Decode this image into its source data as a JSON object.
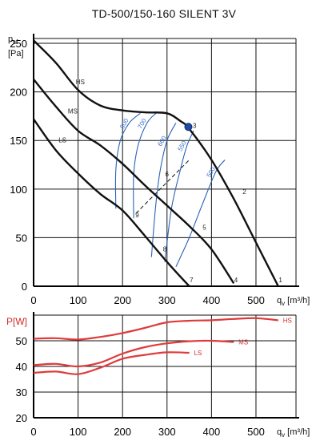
{
  "title": "TD-500/150-160 SILENT 3V",
  "colors": {
    "curve": "#111111",
    "iso": "#2a63b5",
    "power": "#e03a3a",
    "grid": "#111111",
    "op_point": "#1f4aa0"
  },
  "chart_data": [
    {
      "type": "line",
      "title": "TD-500/150-160 SILENT 3V",
      "ylabel": "p_sf [Pa]",
      "xlabel": "q_v [m³/h]",
      "xlim": [
        0,
        590
      ],
      "ylim": [
        0,
        255
      ],
      "x_ticks": [
        0,
        100,
        200,
        300,
        400,
        500
      ],
      "y_ticks": [
        0,
        50,
        100,
        150,
        200,
        250
      ],
      "grid": true,
      "series": [
        {
          "name": "HS",
          "points": [
            [
              0,
              253
            ],
            [
              50,
              230
            ],
            [
              100,
              202
            ],
            [
              150,
              186
            ],
            [
              200,
              181
            ],
            [
              250,
              179
            ],
            [
              300,
              178
            ],
            [
              330,
              170
            ],
            [
              350,
              162
            ],
            [
              400,
              130
            ],
            [
              450,
              90
            ],
            [
              500,
              45
            ],
            [
              550,
              0
            ]
          ]
        },
        {
          "name": "MS",
          "points": [
            [
              0,
              213
            ],
            [
              50,
              185
            ],
            [
              100,
              160
            ],
            [
              150,
              145
            ],
            [
              200,
              126
            ],
            [
              250,
              104
            ],
            [
              300,
              83
            ],
            [
              350,
              62
            ],
            [
              400,
              38
            ],
            [
              450,
              3
            ]
          ]
        },
        {
          "name": "LS",
          "points": [
            [
              0,
              172
            ],
            [
              50,
              140
            ],
            [
              100,
              116
            ],
            [
              150,
              95
            ],
            [
              200,
              78
            ],
            [
              250,
              52
            ],
            [
              300,
              25
            ],
            [
              350,
              0
            ]
          ]
        }
      ],
      "iso_lines": [
        {
          "label": "800",
          "points": [
            [
              185,
              80
            ],
            [
              185,
              120
            ],
            [
              195,
              150
            ],
            [
              215,
              168
            ],
            [
              240,
              178
            ]
          ]
        },
        {
          "label": "700",
          "points": [
            [
              225,
              70
            ],
            [
              225,
              115
            ],
            [
              235,
              145
            ],
            [
              255,
              168
            ],
            [
              275,
              178
            ]
          ]
        },
        {
          "label": "600",
          "points": [
            [
              265,
              30
            ],
            [
              275,
              85
            ],
            [
              285,
              120
            ],
            [
              300,
              150
            ],
            [
              320,
              168
            ]
          ]
        },
        {
          "label": "550",
          "points": [
            [
              295,
              25
            ],
            [
              310,
              80
            ],
            [
              330,
              120
            ],
            [
              345,
              145
            ],
            [
              360,
              160
            ]
          ]
        },
        {
          "label": "500",
          "points": [
            [
              320,
              20
            ],
            [
              350,
              50
            ],
            [
              380,
              85
            ],
            [
              410,
              118
            ],
            [
              430,
              130
            ]
          ]
        }
      ],
      "system_line": {
        "points": [
          [
            230,
            75
          ],
          [
            350,
            130
          ]
        ]
      },
      "operating_point": {
        "label": "3",
        "x": 348,
        "y": 164
      },
      "point_labels": [
        {
          "label": "1",
          "x": 555,
          "y": 4
        },
        {
          "label": "2",
          "x": 474,
          "y": 95
        },
        {
          "label": "3",
          "x": 362,
          "y": 163
        },
        {
          "label": "4",
          "x": 455,
          "y": 4
        },
        {
          "label": "5",
          "x": 384,
          "y": 58
        },
        {
          "label": "6",
          "x": 300,
          "y": 113
        },
        {
          "label": "7",
          "x": 355,
          "y": 4
        },
        {
          "label": "8",
          "x": 295,
          "y": 36
        },
        {
          "label": "9",
          "x": 233,
          "y": 71
        }
      ]
    },
    {
      "type": "line",
      "title": "",
      "ylabel": "P[W]",
      "xlabel": "q_v [m³/h]",
      "xlim": [
        0,
        590
      ],
      "ylim": [
        20,
        60
      ],
      "x_ticks": [
        0,
        100,
        200,
        300,
        400,
        500
      ],
      "y_ticks": [
        20,
        30,
        40,
        50
      ],
      "grid": true,
      "series": [
        {
          "name": "HS",
          "points": [
            [
              0,
              50.8
            ],
            [
              50,
              51
            ],
            [
              100,
              50.5
            ],
            [
              150,
              51.5
            ],
            [
              200,
              53
            ],
            [
              250,
              55
            ],
            [
              300,
              57.2
            ],
            [
              350,
              57.8
            ],
            [
              400,
              58
            ],
            [
              450,
              58.5
            ],
            [
              500,
              58.8
            ],
            [
              550,
              58
            ]
          ]
        },
        {
          "name": "MS",
          "points": [
            [
              0,
              40.5
            ],
            [
              50,
              41
            ],
            [
              100,
              40
            ],
            [
              150,
              41.5
            ],
            [
              200,
              45
            ],
            [
              250,
              47.5
            ],
            [
              300,
              49
            ],
            [
              350,
              49.8
            ],
            [
              400,
              50
            ],
            [
              450,
              49.5
            ]
          ]
        },
        {
          "name": "LS",
          "points": [
            [
              0,
              37.5
            ],
            [
              50,
              38
            ],
            [
              100,
              37
            ],
            [
              150,
              39.5
            ],
            [
              200,
              43
            ],
            [
              250,
              44.5
            ],
            [
              300,
              45.5
            ],
            [
              350,
              45.3
            ]
          ]
        }
      ]
    }
  ],
  "labels": {
    "psf": "p",
    "psf_sub": "sf",
    "pa_unit": "[Pa]",
    "qv": "q",
    "qv_sub": "v",
    "qv_unit": " [m³/h]",
    "pw": "P[W]"
  }
}
